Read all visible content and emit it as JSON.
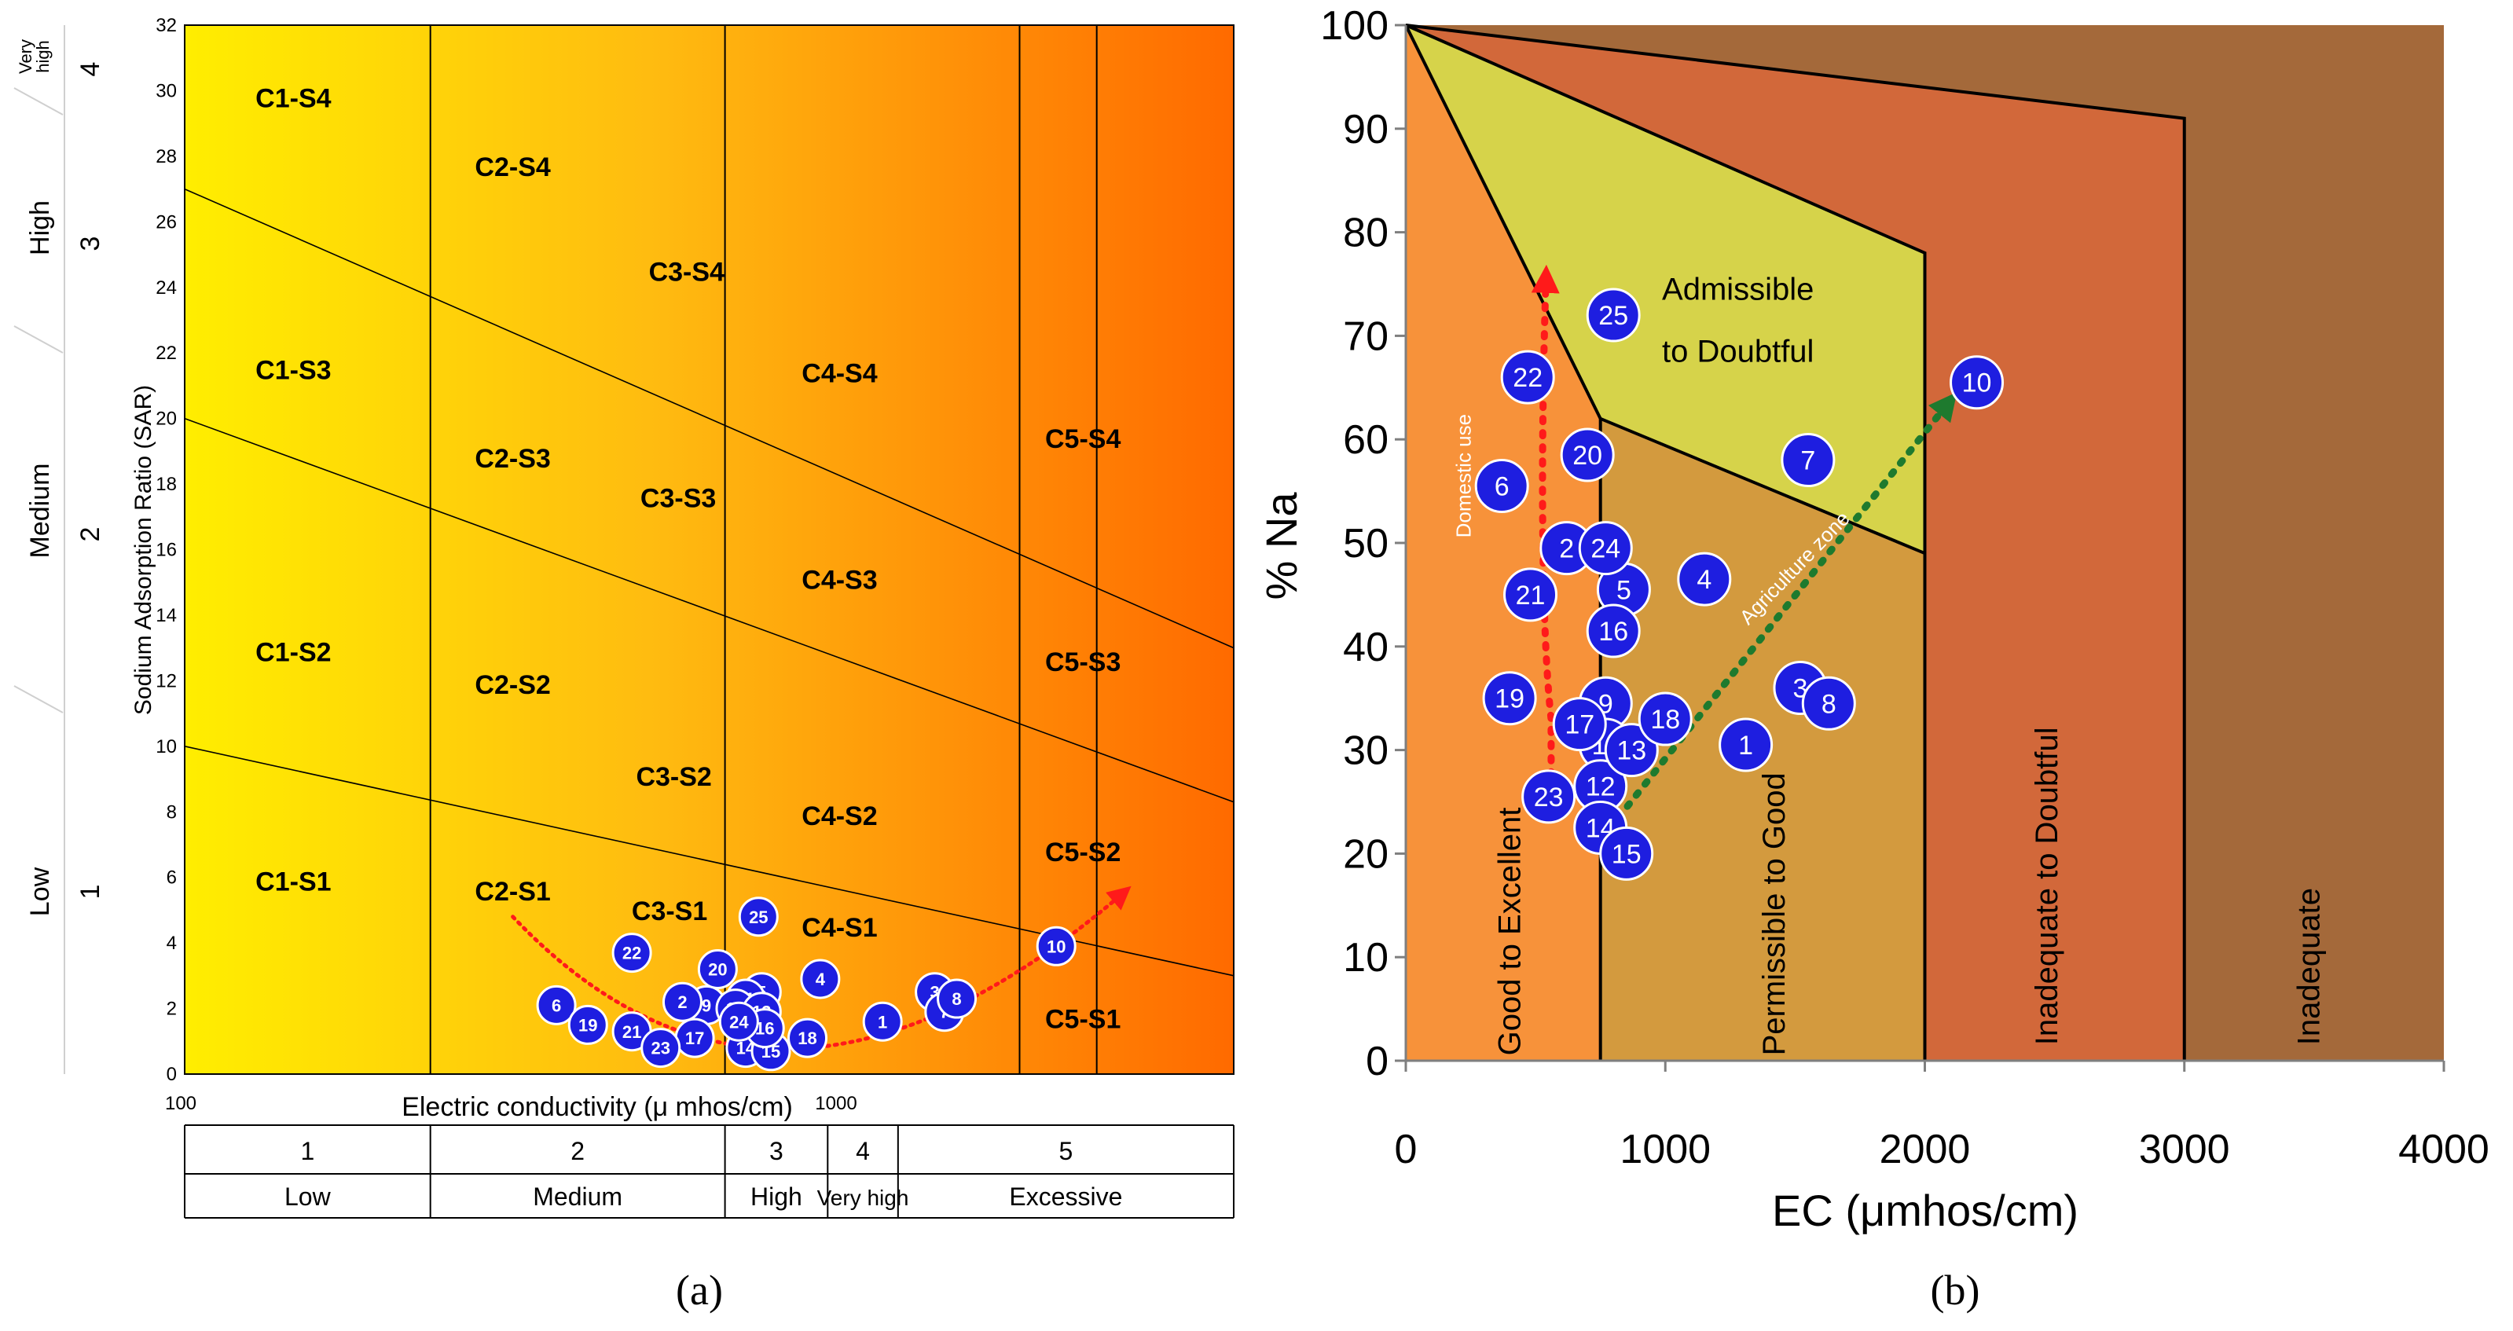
{
  "chart_data": [
    {
      "panel": "a",
      "type": "scatter",
      "title": "",
      "caption": "(a)",
      "xlabel": "Electric conductivity (μ mhos/cm)",
      "ylabel": "Sodium Adsorption Ratio (SAR)",
      "x_scale": "log",
      "xlim": [
        100,
        5000
      ],
      "ylim": [
        0,
        32
      ],
      "x_tick_labels": [
        "100",
        "1000"
      ],
      "y_ticks": [
        0,
        2,
        4,
        6,
        8,
        10,
        12,
        14,
        16,
        18,
        20,
        22,
        24,
        26,
        28,
        30,
        32
      ],
      "salinity_boundaries": [
        250,
        750,
        2250,
        3000
      ],
      "sodium_boundary_lines": [
        {
          "from": [
            100,
            10
          ],
          "to": [
            5000,
            3
          ]
        },
        {
          "from": [
            100,
            20
          ],
          "to": [
            5000,
            8.3
          ]
        },
        {
          "from": [
            100,
            27
          ],
          "to": [
            5000,
            13
          ]
        }
      ],
      "zone_labels": [
        {
          "text": "C1-S4",
          "x": 150,
          "y": 29.5
        },
        {
          "text": "C1-S3",
          "x": 150,
          "y": 21.2
        },
        {
          "text": "C1-S2",
          "x": 150,
          "y": 12.6
        },
        {
          "text": "C1-S1",
          "x": 150,
          "y": 5.6
        },
        {
          "text": "C2-S4",
          "x": 340,
          "y": 27.4
        },
        {
          "text": "C2-S3",
          "x": 340,
          "y": 18.5
        },
        {
          "text": "C2-S2",
          "x": 340,
          "y": 11.6
        },
        {
          "text": "C2-S1",
          "x": 340,
          "y": 5.3
        },
        {
          "text": "C3-S4",
          "x": 650,
          "y": 24.2
        },
        {
          "text": "C3-S3",
          "x": 630,
          "y": 17.3
        },
        {
          "text": "C3-S2",
          "x": 620,
          "y": 8.8
        },
        {
          "text": "C3-S1",
          "x": 610,
          "y": 4.7
        },
        {
          "text": "C4-S4",
          "x": 1150,
          "y": 21.1
        },
        {
          "text": "C4-S3",
          "x": 1150,
          "y": 14.8
        },
        {
          "text": "C4-S2",
          "x": 1150,
          "y": 7.6
        },
        {
          "text": "C4-S1",
          "x": 1150,
          "y": 4.2
        },
        {
          "text": "C5-S4",
          "x": 2850,
          "y": 19.1
        },
        {
          "text": "C5-S3",
          "x": 2850,
          "y": 12.3
        },
        {
          "text": "C5-S2",
          "x": 2850,
          "y": 6.5
        },
        {
          "text": "C5-S1",
          "x": 2850,
          "y": 1.4
        }
      ],
      "points": [
        {
          "id": "1",
          "x": 1350,
          "y": 1.6
        },
        {
          "id": "3",
          "x": 1640,
          "y": 2.5
        },
        {
          "id": "4",
          "x": 1070,
          "y": 2.9
        },
        {
          "id": "5",
          "x": 860,
          "y": 2.5
        },
        {
          "id": "6",
          "x": 400,
          "y": 2.1
        },
        {
          "id": "7",
          "x": 1700,
          "y": 1.9
        },
        {
          "id": "8",
          "x": 1780,
          "y": 2.3
        },
        {
          "id": "9",
          "x": 700,
          "y": 2.1
        },
        {
          "id": "10",
          "x": 2580,
          "y": 3.9
        },
        {
          "id": "11",
          "x": 810,
          "y": 2.3
        },
        {
          "id": "12",
          "x": 780,
          "y": 2.0
        },
        {
          "id": "13",
          "x": 860,
          "y": 1.9
        },
        {
          "id": "14",
          "x": 810,
          "y": 0.8
        },
        {
          "id": "15",
          "x": 890,
          "y": 0.7
        },
        {
          "id": "16",
          "x": 870,
          "y": 1.4
        },
        {
          "id": "17",
          "x": 670,
          "y": 1.1
        },
        {
          "id": "18",
          "x": 1020,
          "y": 1.1
        },
        {
          "id": "19",
          "x": 450,
          "y": 1.5
        },
        {
          "id": "2",
          "x": 640,
          "y": 2.2
        },
        {
          "id": "20",
          "x": 730,
          "y": 3.2
        },
        {
          "id": "21",
          "x": 530,
          "y": 1.3
        },
        {
          "id": "22",
          "x": 530,
          "y": 3.7
        },
        {
          "id": "23",
          "x": 590,
          "y": 0.8
        },
        {
          "id": "24",
          "x": 790,
          "y": 1.6
        },
        {
          "id": "25",
          "x": 850,
          "y": 4.8
        }
      ],
      "bottom_table": {
        "numbers": [
          "1",
          "2",
          "3",
          "4",
          "5"
        ],
        "classes": [
          "Low",
          "Medium",
          "High",
          "Very high",
          "Excessive"
        ]
      },
      "sodium_hazard_side_labels": [
        {
          "name": "Low",
          "num": "1"
        },
        {
          "name": "Medium",
          "num": "2"
        },
        {
          "name": "High",
          "num": "3"
        },
        {
          "name_line1": "Very",
          "name_line2": "high",
          "num": "4"
        }
      ]
    },
    {
      "panel": "b",
      "type": "scatter",
      "title": "",
      "caption": "(b)",
      "xlabel": "EC (μmhos/cm)",
      "ylabel": "% Na",
      "xlim": [
        0,
        4000
      ],
      "ylim": [
        0,
        100
      ],
      "x_ticks": [
        0,
        1000,
        2000,
        3000,
        4000
      ],
      "y_ticks": [
        0,
        10,
        20,
        30,
        40,
        50,
        60,
        70,
        80,
        90,
        100
      ],
      "zone_labels": [
        {
          "text": "Good to Excellent"
        },
        {
          "text": "Permissible to Good"
        },
        {
          "text": "Inadequate to Doubtful"
        },
        {
          "text": "Inadequate"
        },
        {
          "text_line1": "Admissible",
          "text_line2": "to Doubtful"
        }
      ],
      "arrow_labels": {
        "domestic": "Domestic use",
        "agriculture": "Agriculture zone"
      },
      "points": [
        {
          "id": "1",
          "x": 1310,
          "y": 30.5
        },
        {
          "id": "2",
          "x": 620,
          "y": 49.5
        },
        {
          "id": "3",
          "x": 1520,
          "y": 36
        },
        {
          "id": "4",
          "x": 1150,
          "y": 46.5
        },
        {
          "id": "5",
          "x": 840,
          "y": 45.5
        },
        {
          "id": "6",
          "x": 370,
          "y": 55.5
        },
        {
          "id": "7",
          "x": 1550,
          "y": 58
        },
        {
          "id": "8",
          "x": 1630,
          "y": 34.5
        },
        {
          "id": "9",
          "x": 770,
          "y": 34.5
        },
        {
          "id": "10",
          "x": 2200,
          "y": 65.5
        },
        {
          "id": "11",
          "x": 770,
          "y": 30.5
        },
        {
          "id": "12",
          "x": 750,
          "y": 26.5
        },
        {
          "id": "13",
          "x": 870,
          "y": 30
        },
        {
          "id": "14",
          "x": 750,
          "y": 22.5
        },
        {
          "id": "15",
          "x": 850,
          "y": 20
        },
        {
          "id": "16",
          "x": 800,
          "y": 41.5
        },
        {
          "id": "17",
          "x": 670,
          "y": 32.5
        },
        {
          "id": "18",
          "x": 1000,
          "y": 33
        },
        {
          "id": "19",
          "x": 400,
          "y": 35
        },
        {
          "id": "20",
          "x": 700,
          "y": 58.5
        },
        {
          "id": "21",
          "x": 480,
          "y": 45
        },
        {
          "id": "22",
          "x": 470,
          "y": 66
        },
        {
          "id": "23",
          "x": 550,
          "y": 25.5
        },
        {
          "id": "24",
          "x": 770,
          "y": 49.5
        },
        {
          "id": "25",
          "x": 800,
          "y": 72
        }
      ]
    }
  ],
  "colors": {
    "point_fill": "#1e1ee0",
    "point_stroke": "#ffffff",
    "trend_red": "#ff1a1a",
    "trend_green": "#1e7a2e",
    "zone_good": "#f7923a",
    "zone_permissible": "#d39a3e",
    "zone_admissible": "#d6d34a",
    "zone_inadequate_doubtful": "#d2683a",
    "zone_inadequate": "#a4693a"
  }
}
